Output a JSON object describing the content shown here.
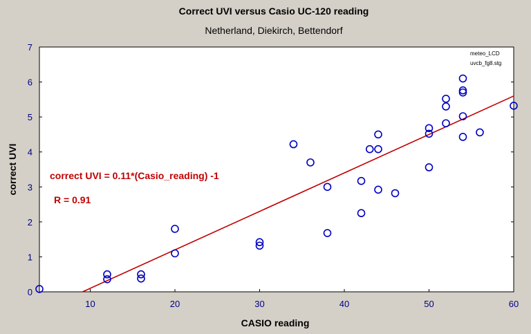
{
  "chart_data": {
    "type": "scatter",
    "title": "Correct UVI versus Casio UC-120 reading",
    "subtitle": "Netherland, Diekirch, Bettendorf",
    "xlabel": "CASIO reading",
    "ylabel": "correct UVI",
    "xlim": [
      4,
      60
    ],
    "ylim": [
      0,
      7
    ],
    "xticks": [
      10,
      20,
      30,
      40,
      50,
      60
    ],
    "yticks": [
      0,
      1,
      2,
      3,
      4,
      5,
      6,
      7
    ],
    "grid": false,
    "file_note": [
      "meteo_LCD",
      "uvcb_fg8.stg"
    ],
    "fit": {
      "slope": 0.11,
      "intercept": -1,
      "color": "#c00000"
    },
    "equation_label": "correct UVI = 0.11*(Casio_reading) -1",
    "r_label": "R = 0.91",
    "marker_color": "#0000c0",
    "points": [
      {
        "x": 4,
        "y": 0.08
      },
      {
        "x": 12,
        "y": 0.5
      },
      {
        "x": 12,
        "y": 0.36
      },
      {
        "x": 16,
        "y": 0.5
      },
      {
        "x": 16,
        "y": 0.38
      },
      {
        "x": 20,
        "y": 1.8
      },
      {
        "x": 20,
        "y": 1.1
      },
      {
        "x": 30,
        "y": 1.42
      },
      {
        "x": 30,
        "y": 1.32
      },
      {
        "x": 34,
        "y": 4.22
      },
      {
        "x": 36,
        "y": 3.7
      },
      {
        "x": 38,
        "y": 3.0
      },
      {
        "x": 38,
        "y": 1.68
      },
      {
        "x": 42,
        "y": 3.17
      },
      {
        "x": 42,
        "y": 2.25
      },
      {
        "x": 43,
        "y": 4.08
      },
      {
        "x": 44,
        "y": 4.5
      },
      {
        "x": 44,
        "y": 4.08
      },
      {
        "x": 44,
        "y": 2.92
      },
      {
        "x": 46,
        "y": 2.82
      },
      {
        "x": 50,
        "y": 4.68
      },
      {
        "x": 50,
        "y": 4.52
      },
      {
        "x": 50,
        "y": 3.56
      },
      {
        "x": 52,
        "y": 5.52
      },
      {
        "x": 52,
        "y": 5.3
      },
      {
        "x": 52,
        "y": 4.82
      },
      {
        "x": 54,
        "y": 6.1
      },
      {
        "x": 54,
        "y": 5.76
      },
      {
        "x": 54,
        "y": 5.7
      },
      {
        "x": 54,
        "y": 5.02
      },
      {
        "x": 54,
        "y": 4.43
      },
      {
        "x": 56,
        "y": 4.56
      },
      {
        "x": 60,
        "y": 5.32
      }
    ]
  }
}
